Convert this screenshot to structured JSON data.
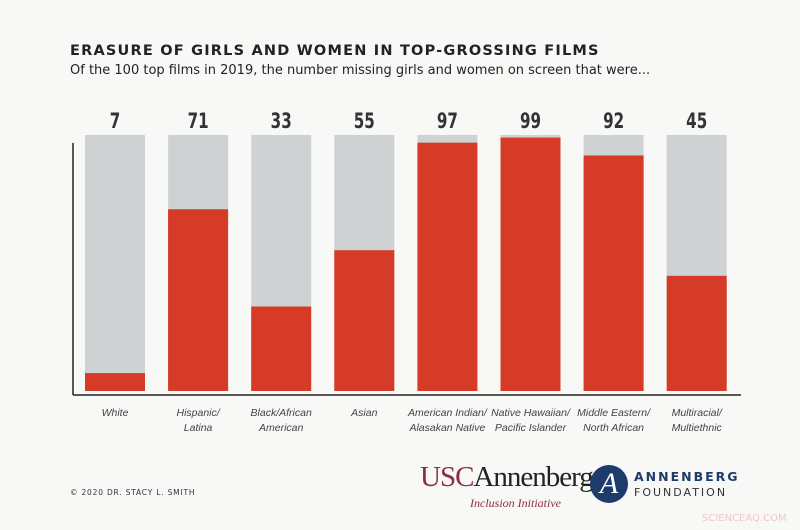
{
  "chart_data": {
    "type": "bar",
    "title": "ERASURE OF GIRLS AND WOMEN IN TOP-GROSSING FILMS",
    "subtitle": "Of the 100 top films in 2019, the number missing girls and women on screen that were...",
    "categories": [
      [
        "White"
      ],
      [
        "Hispanic/",
        "Latina"
      ],
      [
        "Black/African",
        "American"
      ],
      [
        "Asian"
      ],
      [
        "American Indian/",
        "Alasakan Native"
      ],
      [
        "Native Hawaiian/",
        "Pacific Islander"
      ],
      [
        "Middle Eastern/",
        "North African"
      ],
      [
        "Multiracial/",
        "Multiethnic"
      ]
    ],
    "values": [
      7,
      71,
      33,
      55,
      97,
      99,
      92,
      45
    ],
    "total": 100,
    "ylim": [
      0,
      100
    ],
    "grid": false,
    "colors": {
      "value": "#d63b27",
      "remainder": "#cfd2d3",
      "text": "#333333"
    }
  },
  "footer": {
    "copyright": "© 2020 DR. STACY L. SMITH",
    "usc_logo_a": "USC",
    "usc_logo_b": "Annenberg",
    "usc_logo_sub": "Inclusion Initiative",
    "foundation_logo_glyph": "A",
    "foundation_line1": "ANNENBERG",
    "foundation_line2": "FOUNDATION",
    "watermark": "SCIENCEAQ.COM"
  }
}
